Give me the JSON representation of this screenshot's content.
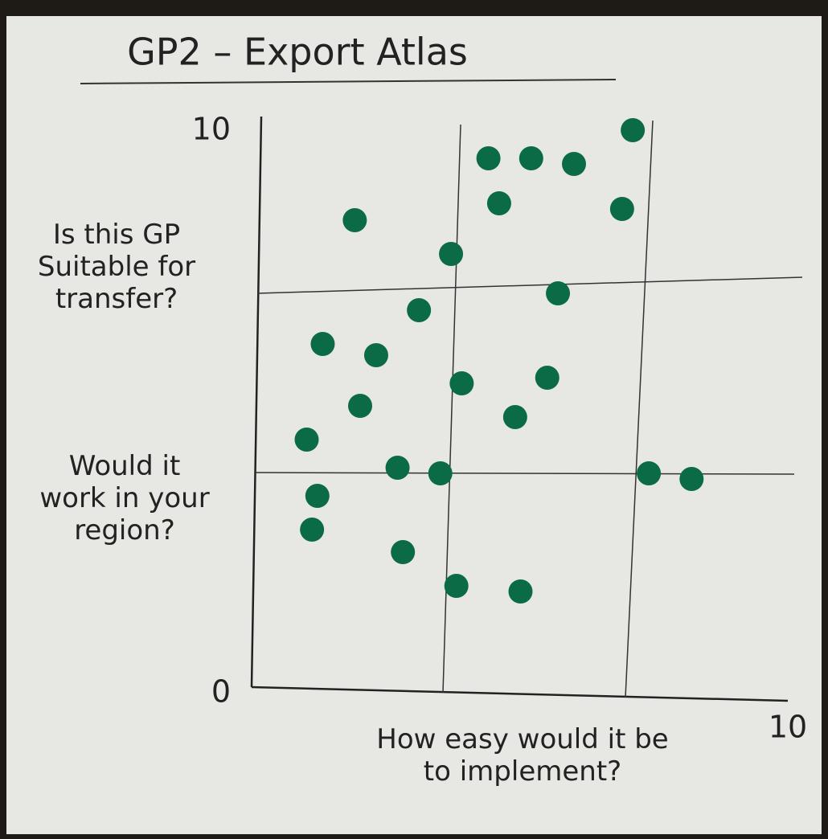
{
  "chart_data": {
    "type": "scatter",
    "title": "GP2 – Export Atlas",
    "y_label": "Is this GP Suitable for transfer?",
    "y_label_2": "Would it work in your region?",
    "x_label": "How easy would it be to implement?",
    "xlim": [
      0,
      10
    ],
    "ylim": [
      0,
      10
    ],
    "xticks": [
      10
    ],
    "yticks": [
      0,
      10
    ],
    "color": "#0b6b46",
    "x": [
      7.1,
      4.4,
      5.2,
      6.0,
      4.6,
      6.9,
      1.9,
      3.7,
      5.7,
      3.1,
      1.3,
      2.3,
      3.9,
      5.5,
      2.0,
      4.9,
      1.0,
      2.7,
      3.5,
      7.4,
      8.2,
      1.2,
      1.1,
      2.8,
      3.8,
      5.0
    ],
    "values": [
      9.9,
      9.4,
      9.4,
      9.3,
      8.6,
      8.5,
      8.3,
      7.7,
      7.0,
      6.7,
      6.1,
      5.9,
      5.4,
      5.5,
      5.0,
      4.8,
      4.4,
      3.9,
      3.8,
      3.8,
      3.7,
      3.4,
      2.8,
      2.4,
      1.8,
      1.7
    ]
  }
}
